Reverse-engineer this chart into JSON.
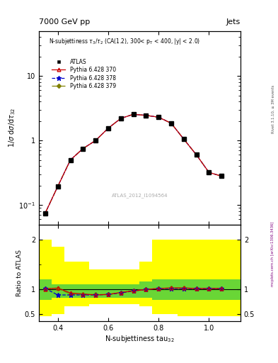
{
  "title_top": "7000 GeV pp",
  "title_right": "Jets",
  "panel_title": "N-subjettiness $\\tau_3$/$\\tau_2$ (CA(1.2), 300< p$_T$ < 400, |y| < 2.0)",
  "ylabel_main": "1/$\\sigma$ d$\\sigma$/d|au$_{32}$",
  "ylabel_ratio": "Ratio to ATLAS",
  "xlabel": "N-subjettiness tau$_{32}$",
  "watermark": "ATLAS_2012_I1094564",
  "rivet_label": "Rivet 3.1.10, ≥ 3M events",
  "mcplots_label": "mcplots.cern.ch [arXiv:1306.3436]",
  "x_data": [
    0.35,
    0.4,
    0.45,
    0.5,
    0.55,
    0.6,
    0.65,
    0.7,
    0.75,
    0.8,
    0.85,
    0.9,
    0.95,
    1.0,
    1.05
  ],
  "atlas_y": [
    0.075,
    0.195,
    0.5,
    0.75,
    1.0,
    1.55,
    2.2,
    2.55,
    2.45,
    2.3,
    1.85,
    1.05,
    0.6,
    0.32,
    0.28
  ],
  "pythia370_y": [
    0.075,
    0.195,
    0.5,
    0.75,
    1.0,
    1.55,
    2.2,
    2.55,
    2.45,
    2.3,
    1.85,
    1.05,
    0.6,
    0.32,
    0.28
  ],
  "pythia378_y": [
    0.075,
    0.195,
    0.5,
    0.75,
    1.0,
    1.55,
    2.2,
    2.55,
    2.45,
    2.3,
    1.85,
    1.05,
    0.6,
    0.32,
    0.28
  ],
  "pythia379_y": [
    0.075,
    0.195,
    0.5,
    0.75,
    1.0,
    1.55,
    2.2,
    2.55,
    2.45,
    2.3,
    1.85,
    1.05,
    0.6,
    0.32,
    0.28
  ],
  "ratio370": [
    1.0,
    1.02,
    0.92,
    0.9,
    0.88,
    0.89,
    0.93,
    0.96,
    0.99,
    1.01,
    1.02,
    1.02,
    1.01,
    1.01,
    1.01
  ],
  "ratio378": [
    1.01,
    0.88,
    0.88,
    0.88,
    0.88,
    0.89,
    0.92,
    0.96,
    0.99,
    1.01,
    1.01,
    1.01,
    1.01,
    1.01,
    1.01
  ],
  "ratio379": [
    1.01,
    1.01,
    0.9,
    0.89,
    0.89,
    0.89,
    0.93,
    0.97,
    0.99,
    1.01,
    1.02,
    1.02,
    1.01,
    1.01,
    1.01
  ],
  "color_atlas": "#000000",
  "color_370": "#cc0000",
  "color_378": "#0000cc",
  "color_379": "#808000",
  "band_x_edges": [
    0.325,
    0.375,
    0.425,
    0.525,
    0.625,
    0.725,
    0.775,
    0.875,
    0.975,
    1.075,
    1.125
  ],
  "yellow_top": [
    2.0,
    1.85,
    1.55,
    1.4,
    1.4,
    1.55,
    2.0,
    2.0,
    2.0,
    2.0
  ],
  "yellow_bot": [
    0.45,
    0.5,
    0.65,
    0.7,
    0.7,
    0.65,
    0.5,
    0.45,
    0.45,
    0.45
  ],
  "green_top": [
    1.2,
    1.1,
    1.1,
    1.1,
    1.1,
    1.15,
    1.2,
    1.2,
    1.2,
    1.2
  ],
  "green_bot": [
    0.78,
    0.82,
    0.82,
    0.82,
    0.82,
    0.82,
    0.78,
    0.78,
    0.78,
    0.78
  ],
  "xlim": [
    0.325,
    1.125
  ],
  "ylim_main_log": [
    0.05,
    50
  ],
  "ylim_ratio": [
    0.35,
    2.3
  ],
  "yticks_ratio": [
    0.5,
    1.0,
    2.0
  ],
  "ytick_labels_ratio": [
    "0.5",
    "1",
    "2"
  ]
}
